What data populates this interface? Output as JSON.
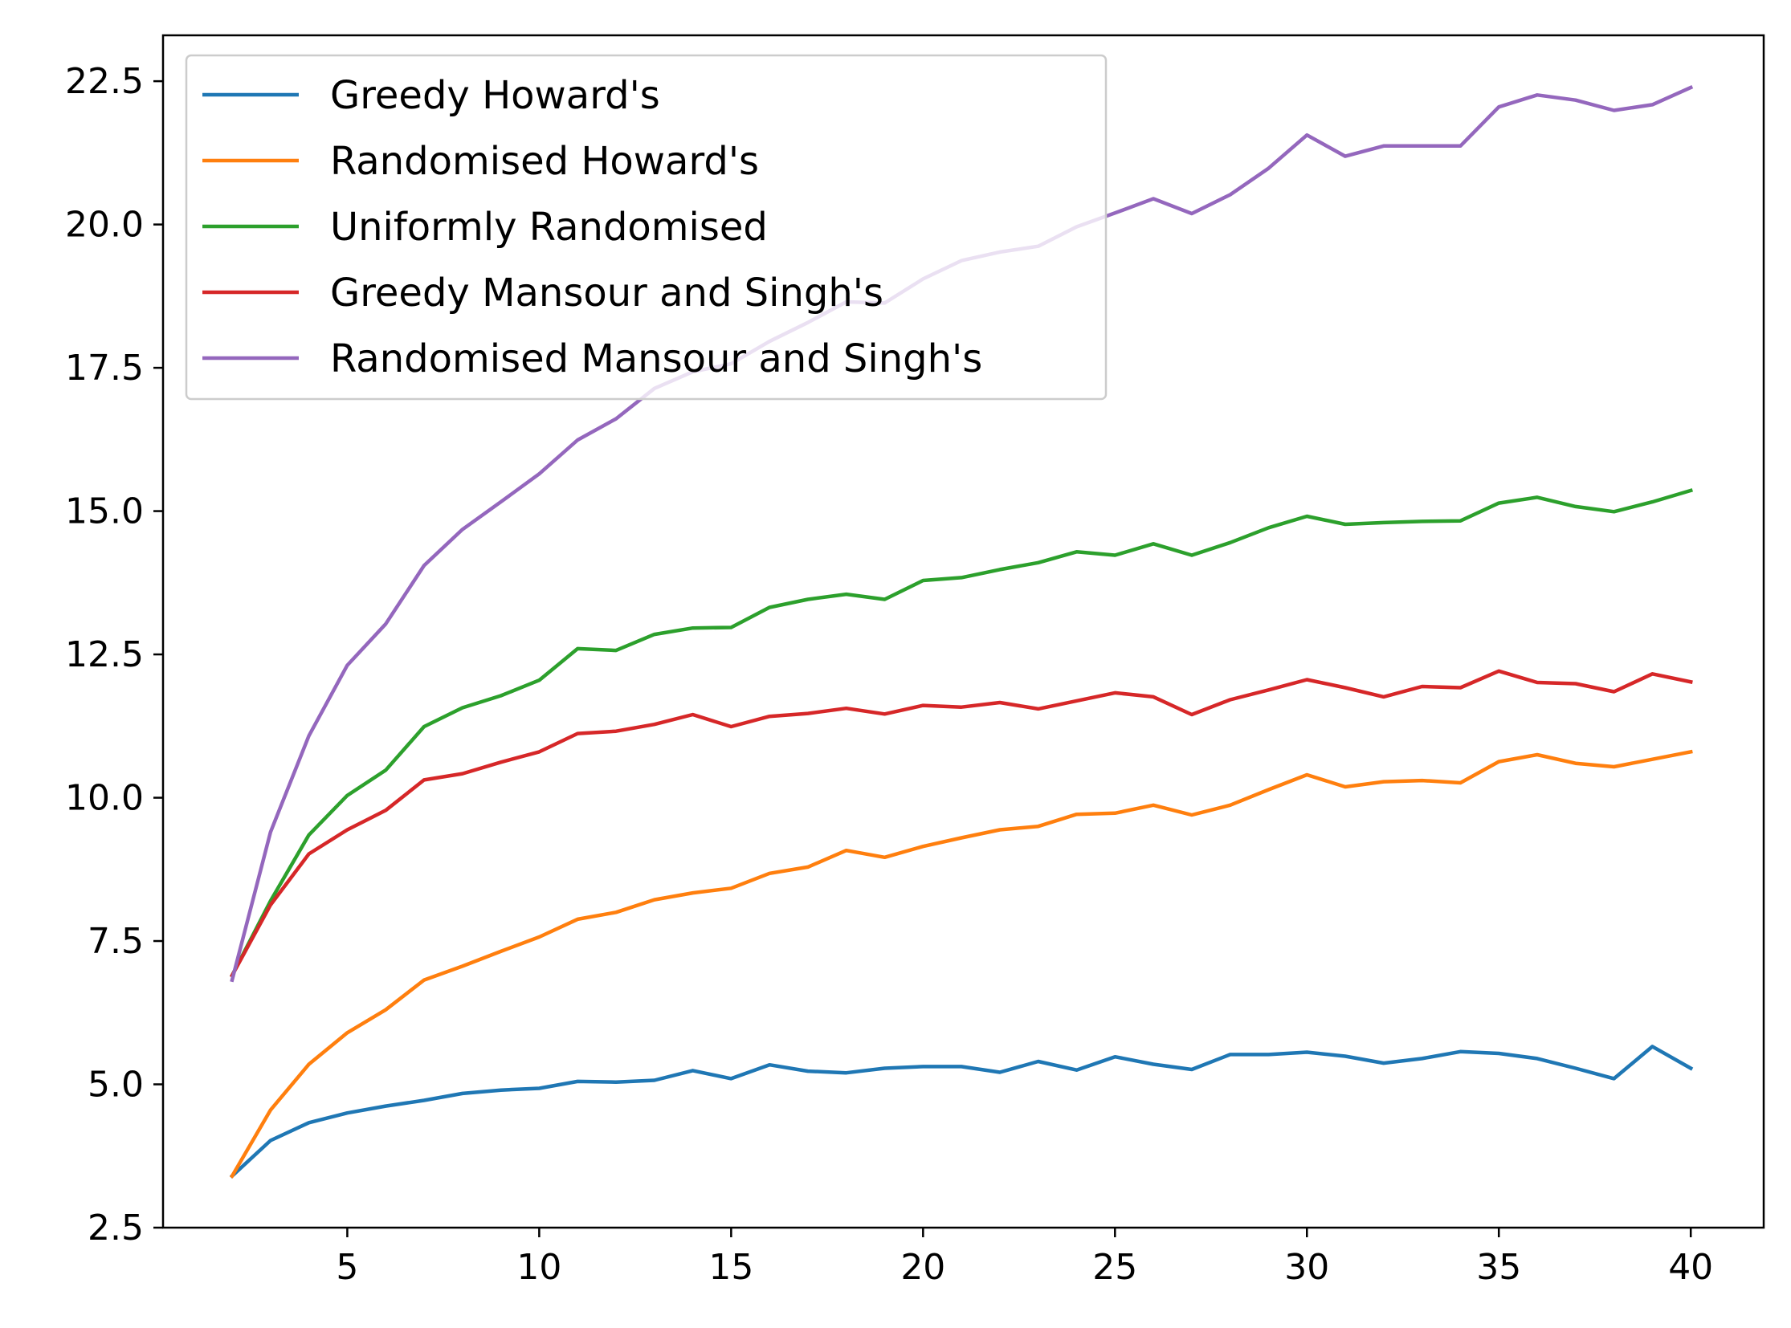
{
  "chart_data": {
    "type": "line",
    "title": "",
    "xlabel": "",
    "ylabel": "",
    "xlim": [
      0.2,
      41.9
    ],
    "ylim": [
      2.5,
      23.3
    ],
    "xticks": [
      5,
      10,
      15,
      20,
      25,
      30,
      35,
      40
    ],
    "xtick_labels": [
      "5",
      "10",
      "15",
      "20",
      "25",
      "30",
      "35",
      "40"
    ],
    "yticks": [
      2.5,
      5.0,
      7.5,
      10.0,
      12.5,
      15.0,
      17.5,
      20.0,
      22.5
    ],
    "ytick_labels": [
      "2.5",
      "5.0",
      "7.5",
      "10.0",
      "12.5",
      "15.0",
      "17.5",
      "20.0",
      "22.5"
    ],
    "grid": false,
    "legend_position": "upper-left",
    "x": [
      2,
      3,
      4,
      5,
      6,
      7,
      8,
      9,
      10,
      11,
      12,
      13,
      14,
      15,
      16,
      17,
      18,
      19,
      20,
      21,
      22,
      23,
      24,
      25,
      26,
      27,
      28,
      29,
      30,
      31,
      32,
      33,
      34,
      35,
      36,
      37,
      38,
      39,
      40
    ],
    "series": [
      {
        "name": "Greedy Howard's",
        "color": "#1f77b4",
        "values": [
          3.4,
          4.02,
          4.33,
          4.5,
          4.62,
          4.72,
          4.84,
          4.9,
          4.93,
          5.05,
          5.04,
          5.07,
          5.24,
          5.1,
          5.34,
          5.23,
          5.2,
          5.28,
          5.31,
          5.31,
          5.21,
          5.4,
          5.25,
          5.48,
          5.35,
          5.26,
          5.52,
          5.52,
          5.56,
          5.49,
          5.37,
          5.45,
          5.57,
          5.54,
          5.45,
          5.28,
          5.1,
          5.66,
          5.28
        ]
      },
      {
        "name": "Randomised Howard's",
        "color": "#ff7f0e",
        "values": [
          3.4,
          4.55,
          5.35,
          5.9,
          6.3,
          6.82,
          7.06,
          7.32,
          7.57,
          7.88,
          8.0,
          8.22,
          8.34,
          8.42,
          8.68,
          8.79,
          9.08,
          8.96,
          9.15,
          9.3,
          9.44,
          9.5,
          9.71,
          9.73,
          9.87,
          9.7,
          9.87,
          10.14,
          10.4,
          10.19,
          10.28,
          10.3,
          10.26,
          10.63,
          10.75,
          10.6,
          10.54,
          10.67,
          10.8
        ]
      },
      {
        "name": "Uniformly Randomised",
        "color": "#2ca02c",
        "values": [
          6.9,
          8.2,
          9.35,
          10.04,
          10.48,
          11.24,
          11.57,
          11.78,
          12.05,
          12.6,
          12.57,
          12.85,
          12.96,
          12.97,
          13.32,
          13.46,
          13.55,
          13.46,
          13.79,
          13.84,
          13.98,
          14.1,
          14.29,
          14.23,
          14.43,
          14.23,
          14.45,
          14.71,
          14.91,
          14.77,
          14.8,
          14.82,
          14.83,
          15.14,
          15.24,
          15.08,
          14.99,
          15.16,
          15.36
        ]
      },
      {
        "name": "Greedy Mansour and Singh's",
        "color": "#d62728",
        "values": [
          6.9,
          8.13,
          9.02,
          9.44,
          9.78,
          10.31,
          10.42,
          10.62,
          10.8,
          11.12,
          11.16,
          11.28,
          11.45,
          11.24,
          11.42,
          11.47,
          11.56,
          11.46,
          11.61,
          11.58,
          11.66,
          11.55,
          11.69,
          11.83,
          11.76,
          11.45,
          11.71,
          11.88,
          12.06,
          11.92,
          11.76,
          11.94,
          11.92,
          12.21,
          12.01,
          11.99,
          11.85,
          12.16,
          12.02
        ]
      },
      {
        "name": "Randomised Mansour and Singh's",
        "color": "#9467bd",
        "values": [
          6.82,
          9.4,
          11.08,
          12.31,
          13.03,
          14.05,
          14.68,
          15.16,
          15.65,
          16.24,
          16.61,
          17.14,
          17.43,
          17.57,
          17.96,
          18.29,
          18.65,
          18.63,
          19.05,
          19.37,
          19.52,
          19.62,
          19.96,
          20.2,
          20.45,
          20.19,
          20.52,
          20.98,
          21.56,
          21.19,
          21.37,
          21.37,
          21.37,
          22.05,
          22.26,
          22.17,
          21.99,
          22.09,
          22.39
        ]
      }
    ]
  }
}
